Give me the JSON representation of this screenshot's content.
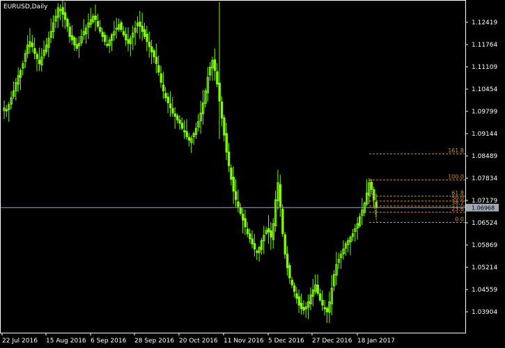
{
  "window": {
    "symbol_label": "EURUSD,Daily"
  },
  "colors": {
    "background": "#000000",
    "frame": "#ffffff",
    "candle": "#7cfc00",
    "fib": "#d8913a",
    "current_price_line": "#a0a8b8",
    "price_tag_bg": "#a0a8b8"
  },
  "y_axis": {
    "labels": [
      "1.12419",
      "1.11764",
      "1.11109",
      "1.10454",
      "1.09799",
      "1.09144",
      "1.08489",
      "1.07834",
      "1.07179",
      "1.06524",
      "1.05869",
      "1.05214",
      "1.04559",
      "1.03904"
    ],
    "range": [
      1.0335,
      1.1295
    ]
  },
  "x_axis": {
    "labels": [
      "22 Jul 2016",
      "15 Aug 2016",
      "6 Sep 2016",
      "28 Sep 2016",
      "20 Oct 2016",
      "11 Nov 2016",
      "5 Dec 2016",
      "27 Dec 2016",
      "18 Jan 2017"
    ]
  },
  "current_price": {
    "label": "1.06968",
    "value": 1.06968
  },
  "fibonacci": {
    "levels": [
      {
        "label": "161.8",
        "price": 1.0855
      },
      {
        "label": "100.0",
        "price": 1.0778
      },
      {
        "label": "61.8",
        "price": 1.07305
      },
      {
        "label": "50.0",
        "price": 1.0716
      },
      {
        "label": "38.2",
        "price": 1.07015
      },
      {
        "label": "23.6",
        "price": 1.0683
      },
      {
        "label": "0.0",
        "price": 1.06535
      }
    ]
  },
  "chart_data": {
    "type": "candlestick",
    "symbol": "EURUSD",
    "timeframe": "Daily",
    "ylim": [
      1.0335,
      1.1295
    ],
    "x_tick_labels": [
      "22 Jul 2016",
      "15 Aug 2016",
      "6 Sep 2016",
      "28 Sep 2016",
      "20 Oct 2016",
      "11 Nov 2016",
      "5 Dec 2016",
      "27 Dec 2016",
      "18 Jan 2017"
    ],
    "close_path": [
      1.099,
      1.0985,
      1.1,
      1.102,
      1.104,
      1.1065,
      1.1085,
      1.11,
      1.112,
      1.115,
      1.1175,
      1.1185,
      1.117,
      1.115,
      1.1135,
      1.112,
      1.114,
      1.116,
      1.1175,
      1.1195,
      1.1215,
      1.124,
      1.126,
      1.1285,
      1.128,
      1.1265,
      1.125,
      1.123,
      1.12,
      1.119,
      1.1175,
      1.1165,
      1.118,
      1.12,
      1.1215,
      1.1225,
      1.124,
      1.125,
      1.126,
      1.125,
      1.123,
      1.1215,
      1.12,
      1.1185,
      1.1175,
      1.119,
      1.1205,
      1.1215,
      1.1225,
      1.1235,
      1.122,
      1.1205,
      1.119,
      1.118,
      1.1195,
      1.121,
      1.1225,
      1.124,
      1.123,
      1.1215,
      1.12,
      1.1185,
      1.117,
      1.1155,
      1.114,
      1.112,
      1.1095,
      1.1065,
      1.104,
      1.102,
      1.1005,
      1.099,
      1.0975,
      1.0965,
      1.0955,
      1.0945,
      1.093,
      1.092,
      1.0905,
      1.0895,
      1.09,
      1.0915,
      1.093,
      1.095,
      1.0975,
      1.1005,
      1.104,
      1.108,
      1.111,
      1.113,
      1.11,
      1.106,
      1.101,
      1.096,
      1.091,
      1.086,
      1.082,
      1.078,
      1.0745,
      1.072,
      1.07,
      1.068,
      1.066,
      1.064,
      1.062,
      1.0605,
      1.059,
      1.0575,
      1.0565,
      1.058,
      1.06,
      1.0615,
      1.063,
      1.0625,
      1.061,
      1.065,
      1.072,
      1.077,
      1.07,
      1.062,
      1.056,
      1.052,
      1.049,
      1.047,
      1.045,
      1.043,
      1.041,
      1.04,
      1.0395,
      1.0405,
      1.042,
      1.044,
      1.0455,
      1.047,
      1.0445,
      1.0425,
      1.041,
      1.04,
      1.039,
      1.042,
      1.046,
      1.05,
      1.053,
      1.0545,
      1.056,
      1.0575,
      1.059,
      1.06,
      1.061,
      1.062,
      1.0635,
      1.065,
      1.067,
      1.069,
      1.071,
      1.074,
      1.077,
      1.075,
      1.072,
      1.0697
    ]
  }
}
